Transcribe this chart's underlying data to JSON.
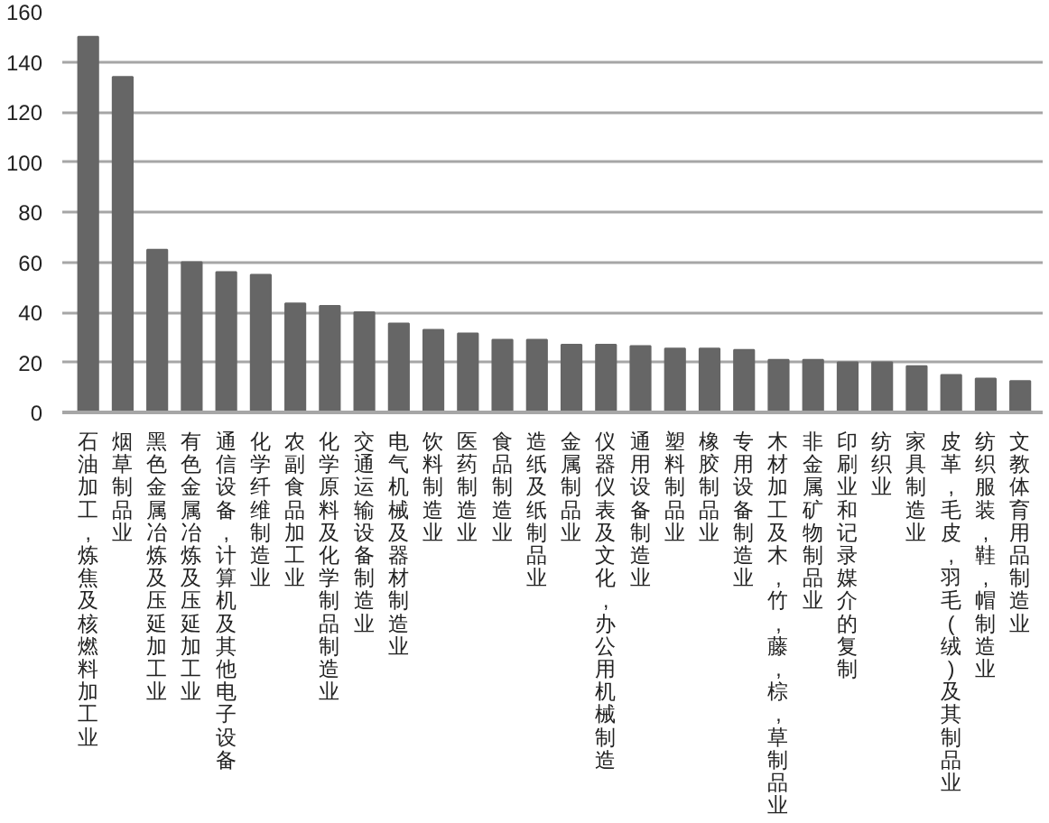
{
  "chart_data": {
    "type": "bar",
    "categories": [
      "石油加工,炼焦及核燃料加工业",
      "烟草制品业",
      "黑色金属冶炼及压延加工业",
      "有色金属冶炼及压延加工业",
      "通信设备,计算机及其他电子设备",
      "化学纤维制造业",
      "农副食品加工业",
      "化学原料及化学制品制造业",
      "交通运输设备制造业",
      "电气机械及器材制造业",
      "饮料制造业",
      "医药制造业",
      "食品制造业",
      "造纸及纸制品业",
      "金属制品业",
      "仪器仪表及文化,办公用机械制造",
      "通用设备制造业",
      "塑料制品业",
      "橡胶制品业",
      "专用设备制造业",
      "木材加工及木,竹,藤,棕,草制品业",
      "非金属矿物制品业",
      "印刷业和记录媒介的复制",
      "纺织业",
      "家具制造业",
      "皮革,毛皮,羽毛(绒)及其制品业",
      "纺织服装,鞋,帽制造业",
      "文教体育用品制造业"
    ],
    "values": [
      150,
      134,
      65,
      60,
      56,
      55,
      43.5,
      42.5,
      40,
      35.5,
      33,
      31.5,
      29,
      29,
      27,
      27,
      26.5,
      25.5,
      25.5,
      25,
      21,
      21,
      20,
      20,
      18.5,
      15,
      13.5,
      12.5
    ],
    "color": "#666666",
    "ylim": [
      0,
      160
    ],
    "yticks": [
      0,
      20,
      40,
      60,
      80,
      100,
      120,
      140,
      160
    ],
    "grid": "y"
  }
}
